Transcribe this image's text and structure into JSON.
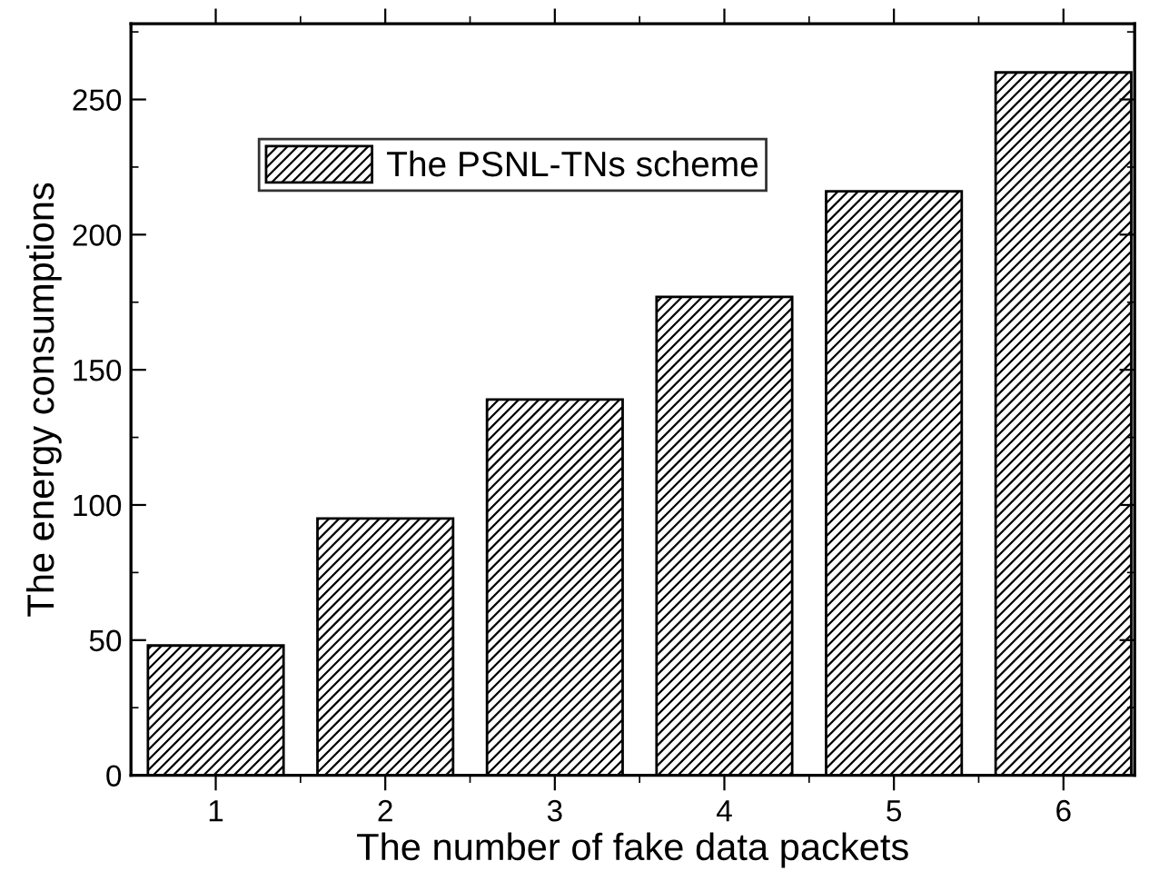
{
  "chart_data": {
    "type": "bar",
    "xlabel": "The number of fake data packets",
    "ylabel": "The energy consumptions",
    "categories": [
      "1",
      "2",
      "3",
      "4",
      "5",
      "6"
    ],
    "series": [
      {
        "name": "The PSNL-TNs scheme",
        "color": "#000000",
        "values": [
          48,
          95,
          139,
          177,
          216,
          260
        ]
      }
    ],
    "ylim": [
      0,
      278
    ],
    "yticks": [
      0,
      50,
      100,
      150,
      200,
      250
    ],
    "grid": false,
    "legend": "top left"
  }
}
